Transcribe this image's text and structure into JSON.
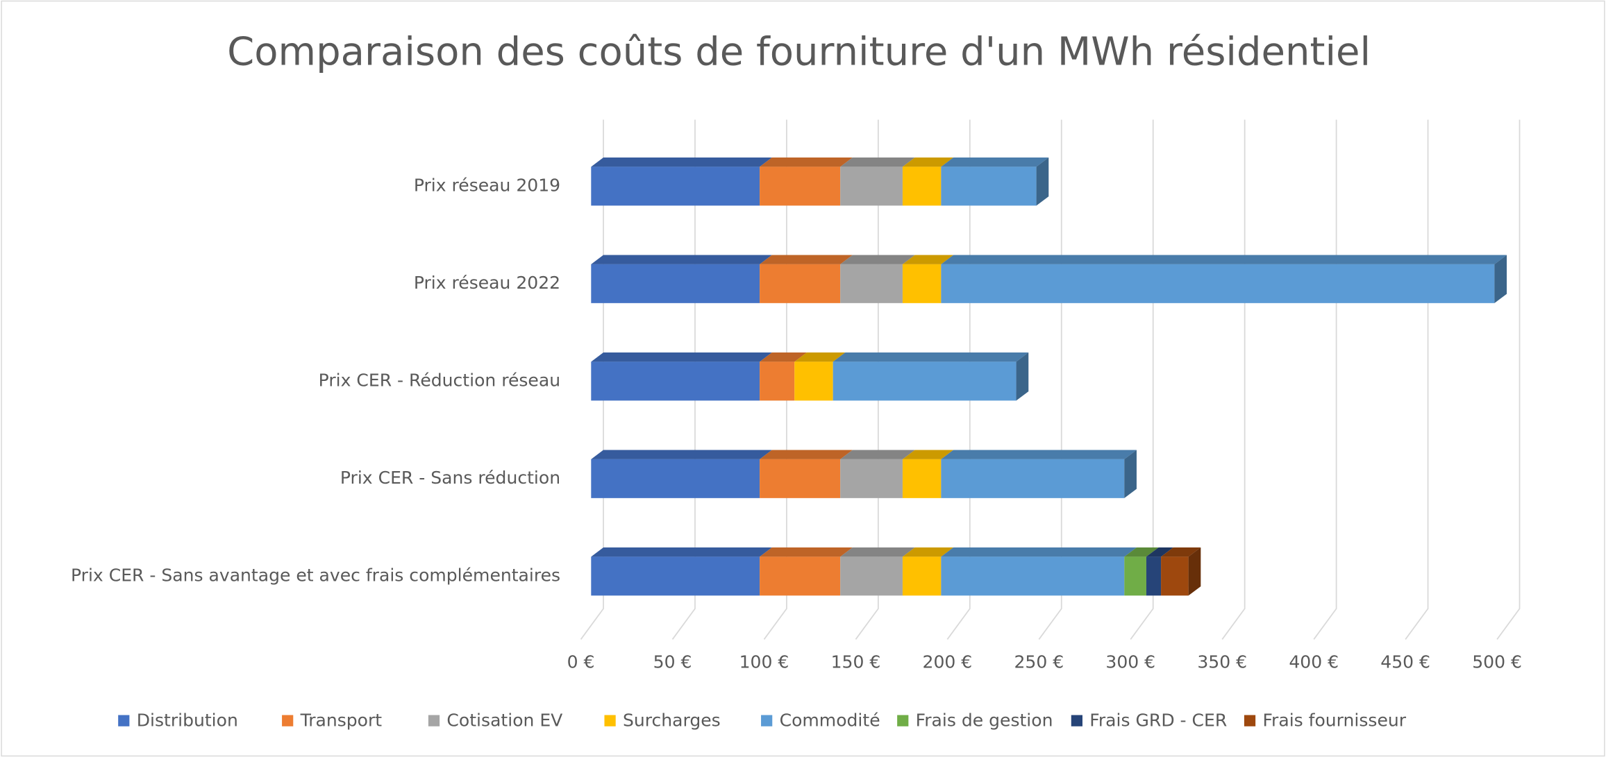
{
  "chart_data": {
    "type": "stacked-bar-horizontal-3d",
    "title": "Comparaison des coûts de fourniture d'un MWh résidentiel",
    "categories": [
      "Prix réseau 2019",
      "Prix réseau 2022",
      "Prix CER - Réduction réseau",
      "Prix CER - Sans réduction",
      "Prix CER - Sans avantage et avec frais complémentaires"
    ],
    "series": [
      {
        "name": "Distribution",
        "color": "#4472c4",
        "values": [
          92,
          92,
          92,
          92,
          92
        ]
      },
      {
        "name": "Transport",
        "color": "#ed7d31",
        "values": [
          44,
          44,
          19,
          44,
          44
        ]
      },
      {
        "name": "Cotisation EV",
        "color": "#a5a5a5",
        "values": [
          34,
          34,
          0,
          34,
          34
        ]
      },
      {
        "name": "Surcharges",
        "color": "#ffc000",
        "values": [
          21,
          21,
          21,
          21,
          21
        ]
      },
      {
        "name": "Commodité",
        "color": "#5b9bd5",
        "values": [
          52,
          302,
          100,
          100,
          100
        ]
      },
      {
        "name": "Frais de gestion",
        "color": "#70ad47",
        "values": [
          0,
          0,
          0,
          0,
          12
        ]
      },
      {
        "name": "Frais GRD - CER",
        "color": "#264478",
        "values": [
          0,
          0,
          0,
          0,
          8
        ]
      },
      {
        "name": "Frais fournisseur",
        "color": "#9e480e",
        "values": [
          0,
          0,
          0,
          0,
          15
        ]
      }
    ],
    "xlim": [
      0,
      500
    ],
    "xticks": [
      {
        "value": 0,
        "label": "0 €"
      },
      {
        "value": 50,
        "label": "50 €"
      },
      {
        "value": 100,
        "label": "100 €"
      },
      {
        "value": 150,
        "label": "150 €"
      },
      {
        "value": 200,
        "label": "200 €"
      },
      {
        "value": 250,
        "label": "250 €"
      },
      {
        "value": 300,
        "label": "300 €"
      },
      {
        "value": 350,
        "label": "350 €"
      },
      {
        "value": 400,
        "label": "400 €"
      },
      {
        "value": 450,
        "label": "450 €"
      },
      {
        "value": 500,
        "label": "500 €"
      }
    ],
    "grid": true,
    "legend": "bottom"
  }
}
